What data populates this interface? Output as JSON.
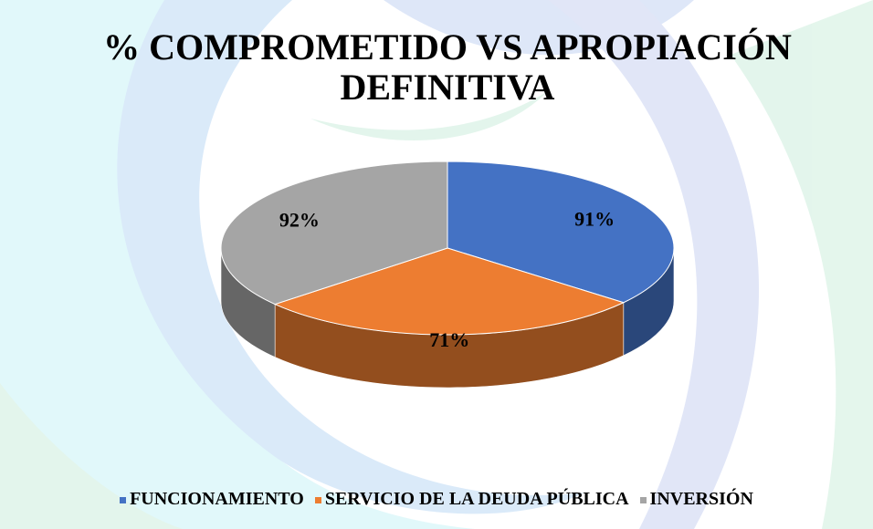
{
  "chart_data": {
    "type": "pie",
    "title": "% COMPROMETIDO VS APROPIACIÓN DEFINITIVA",
    "categories": [
      "FUNCIONAMIENTO",
      "SERVICIO DE LA DEUDA PÚBLICA",
      "INVERSIÓN"
    ],
    "values": [
      91,
      71,
      92
    ],
    "value_labels": [
      "91%",
      "71%",
      "92%"
    ],
    "colors": [
      "#4472c4",
      "#ed7d31",
      "#a5a5a5"
    ],
    "legend": "bottom"
  }
}
